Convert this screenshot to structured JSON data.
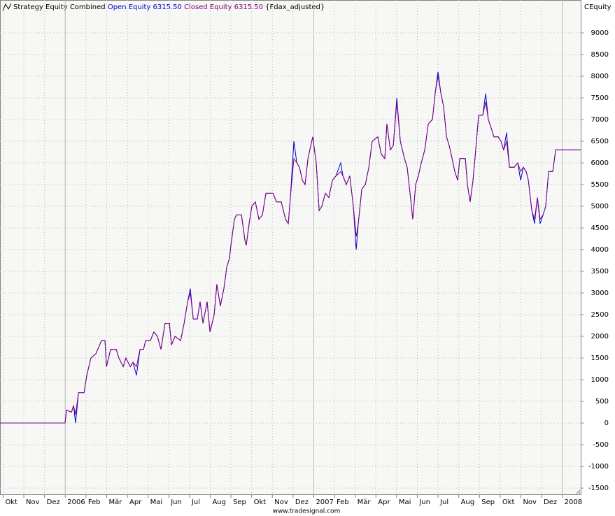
{
  "chart_data": {
    "type": "line",
    "title": "Strategy Equity Combined",
    "subtitle": "{Fdax_adjusted}",
    "y_axis_label": "CEquity",
    "footer": "www.tradesignal.com",
    "x": [
      -0.15,
      2.99,
      3.06,
      3.3,
      3.4,
      3.5,
      3.64,
      3.91,
      4.04,
      4.24,
      4.48,
      4.75,
      4.92,
      4.99,
      5.19,
      5.46,
      5.59,
      5.8,
      5.93,
      6.14,
      6.27,
      6.44,
      6.61,
      6.78,
      6.88,
      7.11,
      7.28,
      7.45,
      7.62,
      7.82,
      8.03,
      8.13,
      8.3,
      8.57,
      8.74,
      8.91,
      9.04,
      9.18,
      9.38,
      9.51,
      9.65,
      9.85,
      9.99,
      10.19,
      10.32,
      10.49,
      10.66,
      10.8,
      10.93,
      11.0,
      11.17,
      11.27,
      11.51,
      11.68,
      11.74,
      11.88,
      12.01,
      12.18,
      12.35,
      12.52,
      12.69,
      13.03,
      13.2,
      13.43,
      13.64,
      13.77,
      13.87,
      14.04,
      14.18,
      14.31,
      14.45,
      14.58,
      14.72,
      14.95,
      15.12,
      15.26,
      15.39,
      15.56,
      15.73,
      15.9,
      16.07,
      16.3,
      16.41,
      16.57,
      16.74,
      16.91,
      17.05,
      17.15,
      17.32,
      17.49,
      17.66,
      17.82,
      18.09,
      18.26,
      18.43,
      18.53,
      18.7,
      18.84,
      19.01,
      19.18,
      19.38,
      19.51,
      19.65,
      19.78,
      19.92,
      20.05,
      20.19,
      20.36,
      20.53,
      20.73,
      20.86,
      21.0,
      21.14,
      21.27,
      21.41,
      21.54,
      21.68,
      21.81,
      21.95,
      22.05,
      22.32,
      22.42,
      22.55,
      22.69,
      22.82,
      22.96,
      23.16,
      23.3,
      23.43,
      23.57,
      23.7,
      23.91,
      24.04,
      24.17,
      24.31,
      24.45,
      24.68,
      24.85,
      24.99,
      25.12,
      25.26,
      25.36,
      25.53,
      25.66,
      25.8,
      25.93,
      26.07,
      26.2,
      26.34,
      26.54,
      26.68,
      27.89
    ],
    "series": [
      {
        "name": "Open Equity 6315.50",
        "color": "#0000cc",
        "values": [
          0,
          0,
          300,
          250,
          400,
          0,
          700,
          700,
          1100,
          1500,
          1600,
          1900,
          1900,
          1300,
          1700,
          1700,
          1500,
          1300,
          1500,
          1300,
          1400,
          1100,
          1700,
          1700,
          1900,
          1900,
          2100,
          2000,
          1700,
          2300,
          2300,
          1800,
          2000,
          1900,
          2300,
          2800,
          3100,
          2400,
          2400,
          2800,
          2300,
          2800,
          2100,
          2500,
          3200,
          2700,
          3100,
          3600,
          3800,
          4100,
          4700,
          4800,
          4800,
          4200,
          4100,
          4600,
          5000,
          5100,
          4700,
          4800,
          5300,
          5300,
          5100,
          5100,
          4700,
          4600,
          5200,
          6500,
          6000,
          5900,
          5600,
          5500,
          6100,
          6600,
          6000,
          4900,
          5000,
          5300,
          5200,
          5600,
          5700,
          6000,
          5700,
          5500,
          5700,
          5000,
          4000,
          4600,
          5400,
          5500,
          5900,
          6500,
          6600,
          6200,
          6100,
          6900,
          6300,
          6400,
          7500,
          6500,
          6100,
          5900,
          5300,
          4700,
          5500,
          5700,
          6000,
          6300,
          6900,
          7000,
          7600,
          8100,
          7600,
          7300,
          6600,
          6400,
          6100,
          5800,
          5600,
          6100,
          6100,
          5500,
          5100,
          5600,
          6300,
          7100,
          7100,
          7600,
          7000,
          6800,
          6600,
          6600,
          6500,
          6300,
          6700,
          5900,
          5900,
          6000,
          5600,
          5900,
          5800,
          5600,
          4900,
          4600,
          5200,
          4600,
          4800,
          5000,
          5800,
          5800,
          6300,
          6300
        ]
      },
      {
        "name": "Closed Equity 6315.50",
        "color": "#800080",
        "values": [
          0,
          0,
          300,
          250,
          400,
          200,
          700,
          700,
          1100,
          1500,
          1600,
          1900,
          1900,
          1300,
          1700,
          1700,
          1500,
          1300,
          1500,
          1300,
          1400,
          1300,
          1700,
          1700,
          1900,
          1900,
          2100,
          2000,
          1700,
          2300,
          2300,
          1800,
          2000,
          1900,
          2300,
          2800,
          3000,
          2400,
          2400,
          2800,
          2300,
          2800,
          2100,
          2500,
          3200,
          2700,
          3100,
          3600,
          3800,
          4100,
          4700,
          4800,
          4800,
          4200,
          4100,
          4600,
          5000,
          5100,
          4700,
          4800,
          5300,
          5300,
          5100,
          5100,
          4700,
          4600,
          5200,
          6100,
          6000,
          5900,
          5600,
          5500,
          6100,
          6600,
          6000,
          4900,
          5000,
          5300,
          5200,
          5600,
          5700,
          5800,
          5700,
          5500,
          5700,
          5000,
          4300,
          4600,
          5400,
          5500,
          5900,
          6500,
          6600,
          6200,
          6100,
          6900,
          6300,
          6400,
          7400,
          6500,
          6100,
          5900,
          5300,
          4700,
          5500,
          5700,
          6000,
          6300,
          6900,
          7000,
          7600,
          8000,
          7600,
          7300,
          6600,
          6400,
          6100,
          5800,
          5600,
          6100,
          6100,
          5500,
          5100,
          5600,
          6300,
          7100,
          7100,
          7400,
          7000,
          6800,
          6600,
          6600,
          6500,
          6300,
          6500,
          5900,
          5900,
          6000,
          5800,
          5900,
          5800,
          5600,
          4900,
          4700,
          5200,
          4700,
          4800,
          5000,
          5800,
          5800,
          6300,
          6300
        ]
      }
    ],
    "xlim": [
      -0.15,
      27.89
    ],
    "xticks": [
      {
        "value": 0,
        "label": "Okt"
      },
      {
        "value": 1,
        "label": "Nov"
      },
      {
        "value": 2,
        "label": "Dez"
      },
      {
        "value": 3,
        "label": "2006"
      },
      {
        "value": 4,
        "label": "Feb"
      },
      {
        "value": 5,
        "label": "Mär"
      },
      {
        "value": 6,
        "label": "Apr"
      },
      {
        "value": 7,
        "label": "Mai"
      },
      {
        "value": 8,
        "label": "Jun"
      },
      {
        "value": 9,
        "label": "Jul"
      },
      {
        "value": 10,
        "label": "Aug"
      },
      {
        "value": 11,
        "label": "Sep"
      },
      {
        "value": 12,
        "label": "Okt"
      },
      {
        "value": 13,
        "label": "Nov"
      },
      {
        "value": 14,
        "label": "Dez"
      },
      {
        "value": 15,
        "label": "2007"
      },
      {
        "value": 16,
        "label": "Feb"
      },
      {
        "value": 17,
        "label": "Mär"
      },
      {
        "value": 18,
        "label": "Apr"
      },
      {
        "value": 19,
        "label": "Mai"
      },
      {
        "value": 20,
        "label": "Jun"
      },
      {
        "value": 21,
        "label": "Jul"
      },
      {
        "value": 22,
        "label": "Aug"
      },
      {
        "value": 23,
        "label": "Sep"
      },
      {
        "value": 24,
        "label": "Okt"
      },
      {
        "value": 25,
        "label": "Nov"
      },
      {
        "value": 26,
        "label": "Dez"
      },
      {
        "value": 27,
        "label": "2008"
      }
    ],
    "ylim": [
      -1660,
      9435
    ],
    "yticks": [
      -1500,
      -1000,
      -500,
      0,
      500,
      1000,
      1500,
      2000,
      2500,
      3000,
      3500,
      4000,
      4500,
      5000,
      5500,
      6000,
      6500,
      7000,
      7500,
      8000,
      8500,
      9000
    ],
    "grid": true
  }
}
